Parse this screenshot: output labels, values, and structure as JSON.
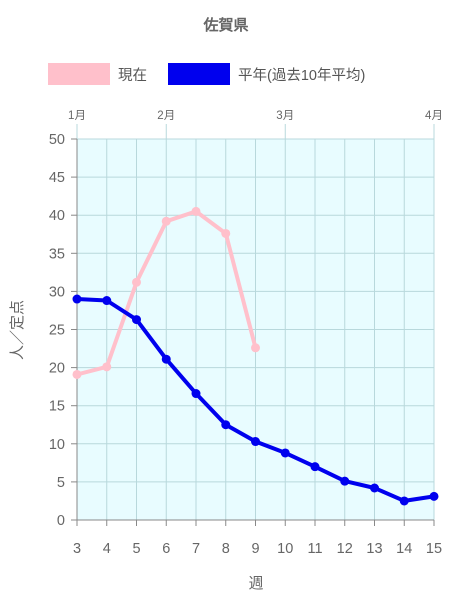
{
  "chart_data": {
    "type": "line",
    "title": "佐賀県",
    "xlabel": "週",
    "ylabel": "人／定点",
    "xlim": [
      3,
      15
    ],
    "ylim": [
      0,
      50
    ],
    "x_ticks": [
      3,
      4,
      5,
      6,
      7,
      8,
      9,
      10,
      11,
      12,
      13,
      14,
      15
    ],
    "y_ticks": [
      0,
      5,
      10,
      15,
      20,
      25,
      30,
      35,
      40,
      45,
      50
    ],
    "grid": true,
    "plot_background": "#e8fcff",
    "grid_color": "#b8d8dc",
    "top_axis_months": [
      {
        "label": "1月",
        "x": 3
      },
      {
        "label": "2月",
        "x": 6
      },
      {
        "label": "3月",
        "x": 10
      },
      {
        "label": "4月",
        "x": 15
      }
    ],
    "legend_position": "top",
    "series": [
      {
        "name": "現在",
        "color": "#ffc0cb",
        "x": [
          3,
          4,
          5,
          6,
          7,
          8,
          9
        ],
        "y": [
          19.1,
          20.1,
          31.2,
          39.2,
          40.5,
          37.6,
          22.6
        ]
      },
      {
        "name": "平年(過去10年平均)",
        "color": "#0000ee",
        "x": [
          3,
          4,
          5,
          6,
          7,
          8,
          9,
          10,
          11,
          12,
          13,
          14,
          15
        ],
        "y": [
          29.0,
          28.8,
          26.3,
          21.1,
          16.6,
          12.5,
          10.3,
          8.8,
          7.0,
          5.1,
          4.2,
          2.5,
          3.1
        ]
      }
    ]
  }
}
